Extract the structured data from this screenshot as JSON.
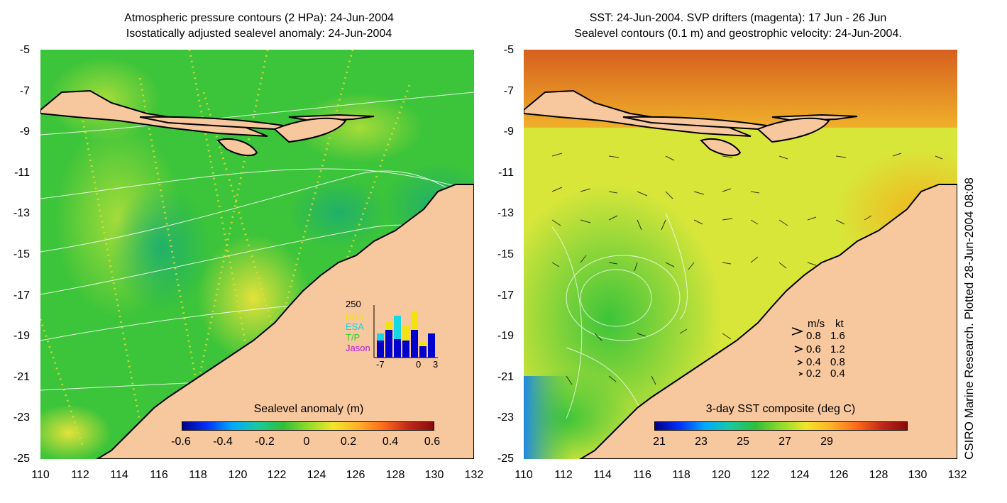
{
  "left": {
    "title_line1": "Atmospheric pressure contours (2 HPa): 24-Jun-2004",
    "title_line2": "Isostatically adjusted sealevel anomaly: 24-Jun-2004",
    "colorbar_label": "Sealevel anomaly (m)",
    "colorbar_ticks": [
      "-0.6",
      "-0.4",
      "-0.2",
      "0",
      "0.2",
      "0.4",
      "0.6"
    ],
    "inset": {
      "ymax_label": "250",
      "legend": [
        {
          "name": "ERS",
          "color": "#f4e20f"
        },
        {
          "name": "ESA",
          "color": "#17d6e6"
        },
        {
          "name": "T/P",
          "color": "#36d22f"
        },
        {
          "name": "Jason",
          "color": "#b21cd6"
        }
      ],
      "xticks": [
        "-7",
        "0",
        "3"
      ]
    }
  },
  "right": {
    "title_line1": "SST: 24-Jun-2004. SVP drifters (magenta): 17 Jun - 26 Jun",
    "title_line2": "Sealevel contours (0.1 m) and geostrophic velocity: 24-Jun-2004.",
    "colorbar_label": "3-day SST composite (deg C)",
    "colorbar_ticks": [
      "21",
      "23",
      "25",
      "27",
      "29"
    ],
    "speed_legend": {
      "header_ms": "m/s",
      "header_kt": "kt",
      "rows": [
        {
          "ms": "0.8",
          "kt": "1.6"
        },
        {
          "ms": "0.6",
          "kt": "1.2"
        },
        {
          "ms": "0.4",
          "kt": "0.8"
        },
        {
          "ms": "0.2",
          "kt": "0.4"
        }
      ]
    }
  },
  "axes": {
    "y_ticks": [
      "-5",
      "-7",
      "-9",
      "-11",
      "-13",
      "-15",
      "-17",
      "-19",
      "-21",
      "-23",
      "-25"
    ],
    "x_ticks": [
      "110",
      "112",
      "114",
      "116",
      "118",
      "120",
      "122",
      "124",
      "126",
      "128",
      "130",
      "132"
    ]
  },
  "credit": "CSIRO Marine Research. Plotted 28-Jun-2004 08:08",
  "colors": {
    "land": "#f7c79e",
    "ocean_left": "#3cc43a",
    "ocean_right": "#d8e63a"
  }
}
